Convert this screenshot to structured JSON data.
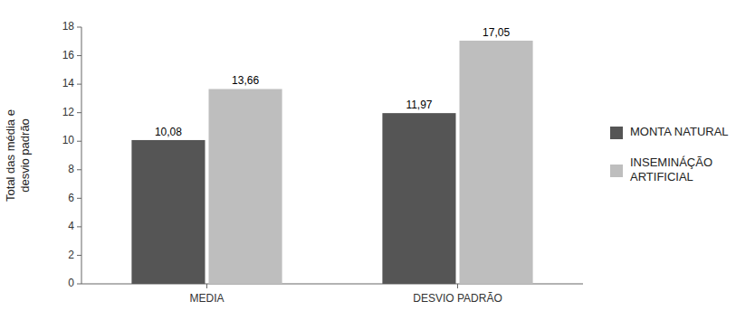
{
  "chart_data": {
    "type": "bar",
    "ylabel": "Total das média e\ndesvio padrão",
    "categories": [
      "MEDIA",
      "DESVIO PADRÃO"
    ],
    "series": [
      {
        "name": "MONTA NATURAL",
        "color": "#555555",
        "values": [
          10.08,
          11.97
        ],
        "value_labels": [
          "10,08",
          "11,97"
        ]
      },
      {
        "name": "INSEMINÁÇÃO\nARTIFICIAL",
        "color": "#bebebe",
        "values": [
          13.66,
          17.05
        ],
        "value_labels": [
          "13,66",
          "17,05"
        ]
      }
    ],
    "ylim": [
      0,
      18
    ],
    "yticks": [
      0,
      2,
      4,
      6,
      8,
      10,
      12,
      14,
      16,
      18
    ],
    "grid": false,
    "legend": "right",
    "data_labels": true
  }
}
